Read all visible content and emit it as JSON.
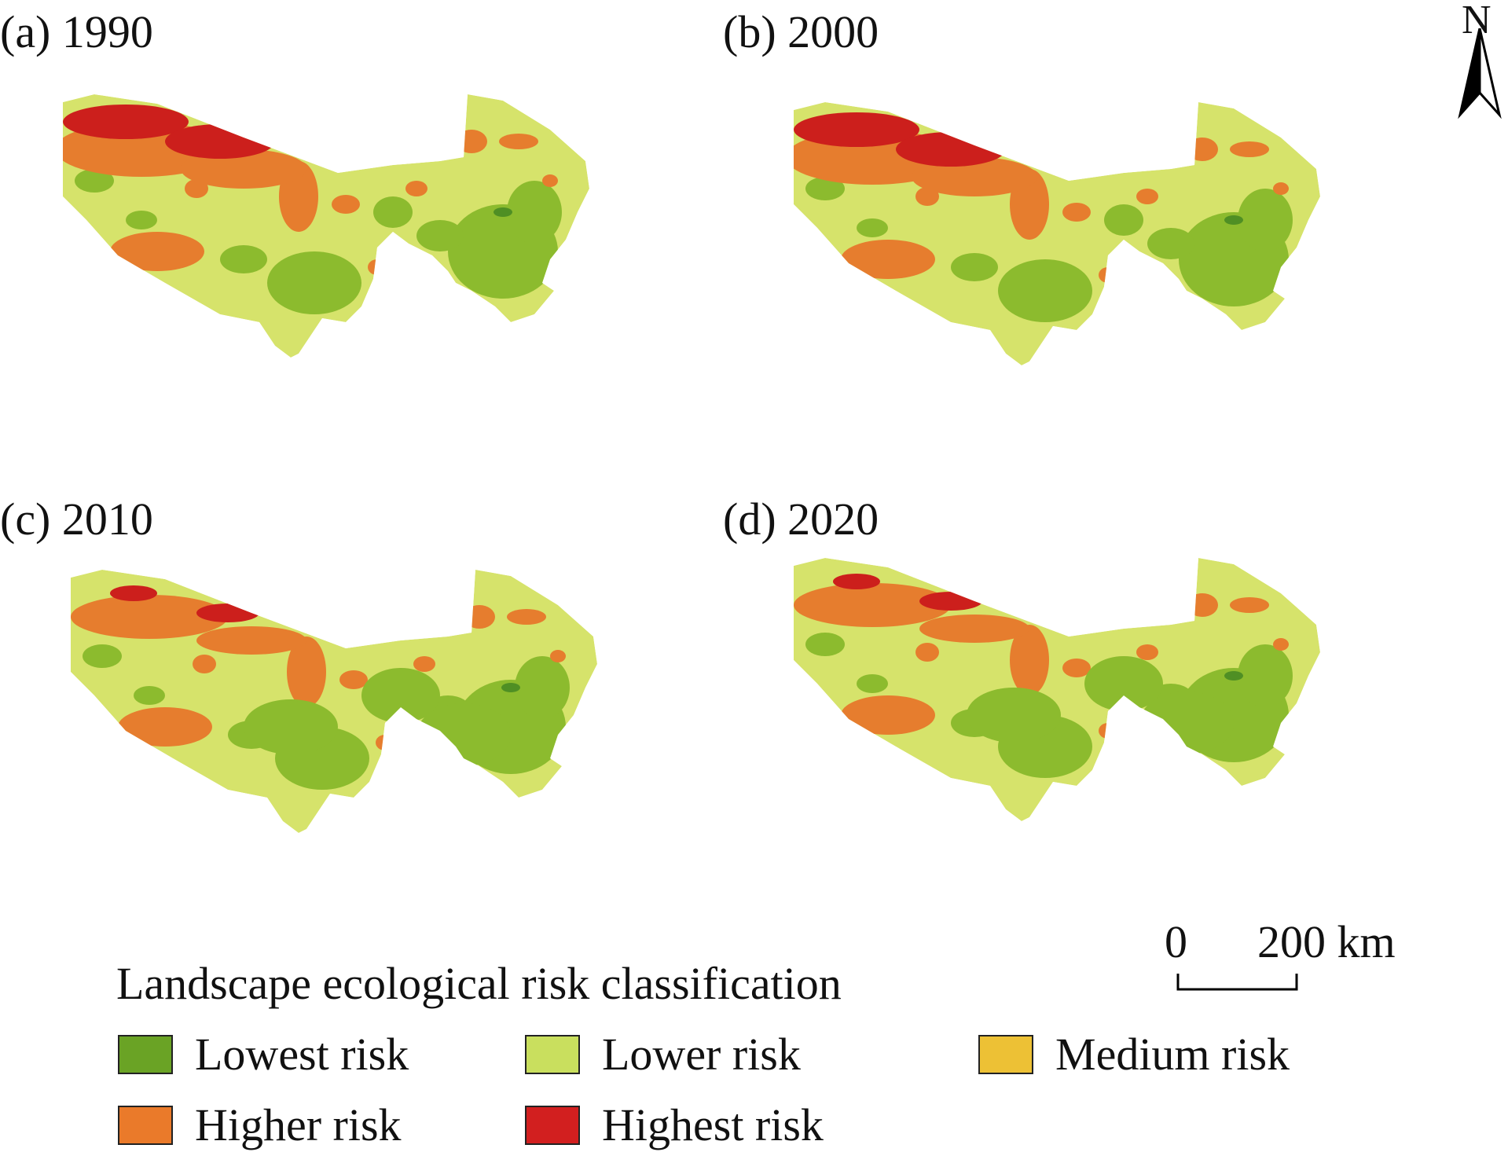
{
  "panels": [
    {
      "label": "(a) 1990"
    },
    {
      "label": "(b) 2000"
    },
    {
      "label": "(c) 2010"
    },
    {
      "label": "(d) 2020"
    }
  ],
  "legend": {
    "title": "Landscape ecological risk classification",
    "items": [
      {
        "label": "Lowest risk",
        "color": "#6aa325"
      },
      {
        "label": "Lower risk",
        "color": "#c9df5e"
      },
      {
        "label": "Medium risk",
        "color": "#edc135"
      },
      {
        "label": "Higher risk",
        "color": "#ea7a2a"
      },
      {
        "label": "Highest risk",
        "color": "#d21f1f"
      }
    ]
  },
  "scale_bar": {
    "start_label": "0",
    "end_label": "200 km"
  },
  "north_arrow": {
    "label": "N"
  },
  "colors": {
    "lowest": "#8cbb2e",
    "lower": "#d6e36b",
    "higher": "#e67d2e",
    "highest": "#cc1f1c",
    "deep_green": "#4f8f24"
  }
}
